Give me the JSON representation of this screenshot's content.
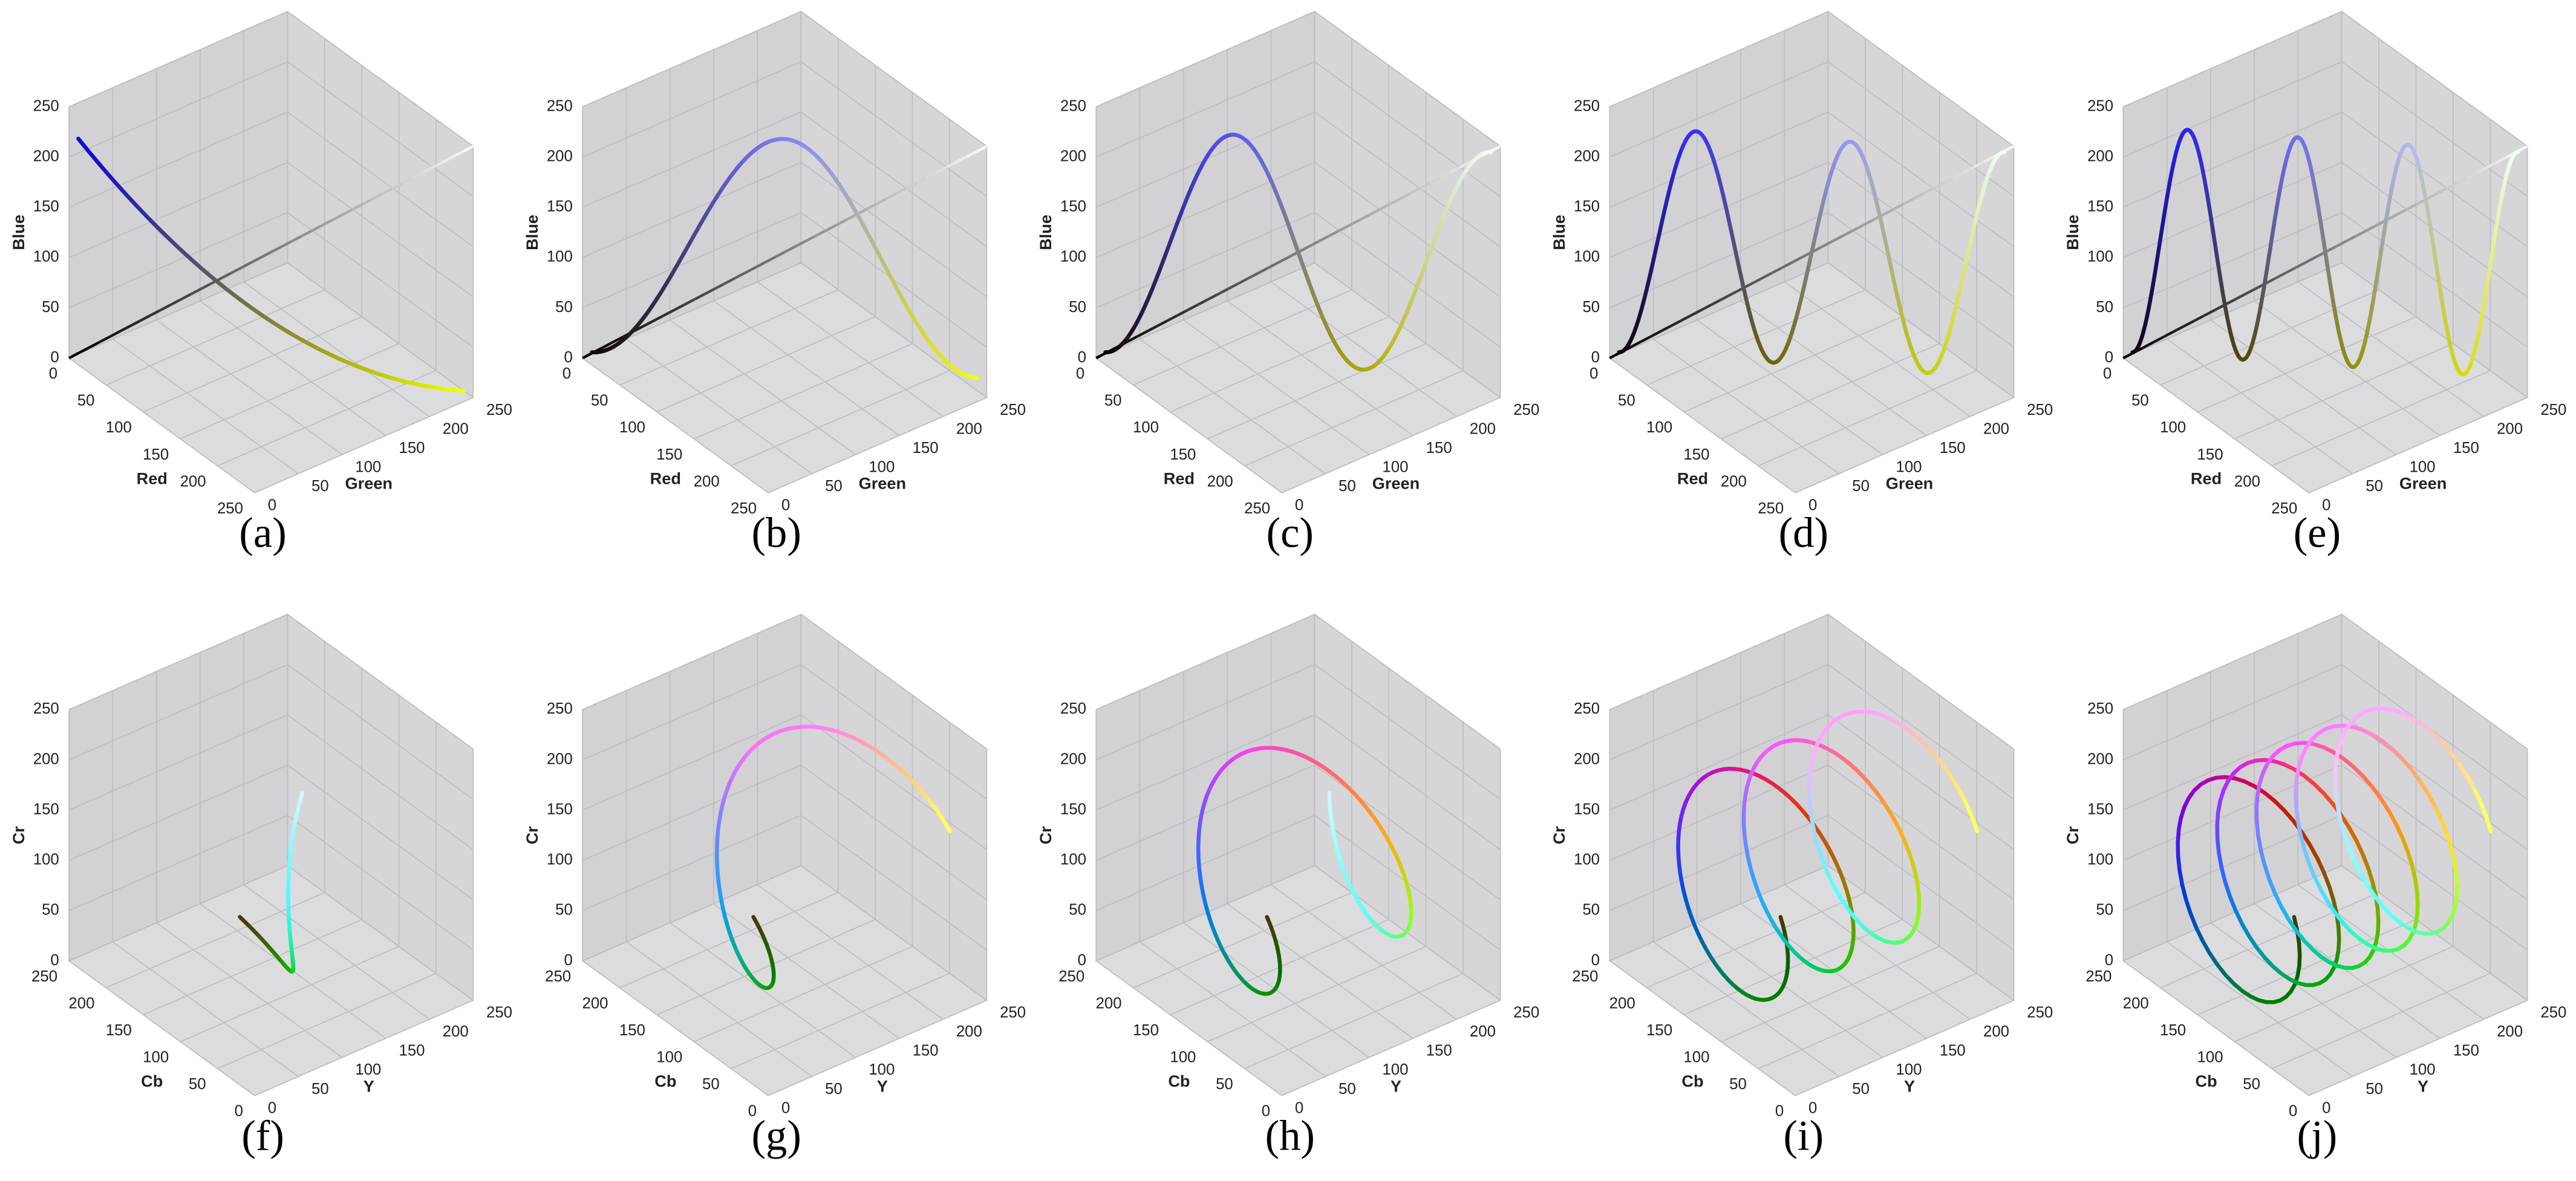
{
  "rows": [
    {
      "axes": {
        "x": "Red",
        "y": "Green",
        "z": "Blue"
      },
      "lim": [
        0,
        250
      ],
      "ticks": [
        0,
        50,
        100,
        150,
        200,
        250
      ],
      "x_reversed": false,
      "captions": [
        "(a)",
        "(b)",
        "(c)",
        "(d)",
        "(e)"
      ]
    },
    {
      "axes": {
        "x": "Cb",
        "y": "Y",
        "z": "Cr"
      },
      "lim": [
        0,
        250
      ],
      "ticks": [
        0,
        50,
        100,
        150,
        200,
        250
      ],
      "x_reversed": true,
      "captions": [
        "(f)",
        "(g)",
        "(h)",
        "(i)",
        "(j)"
      ]
    }
  ]
}
